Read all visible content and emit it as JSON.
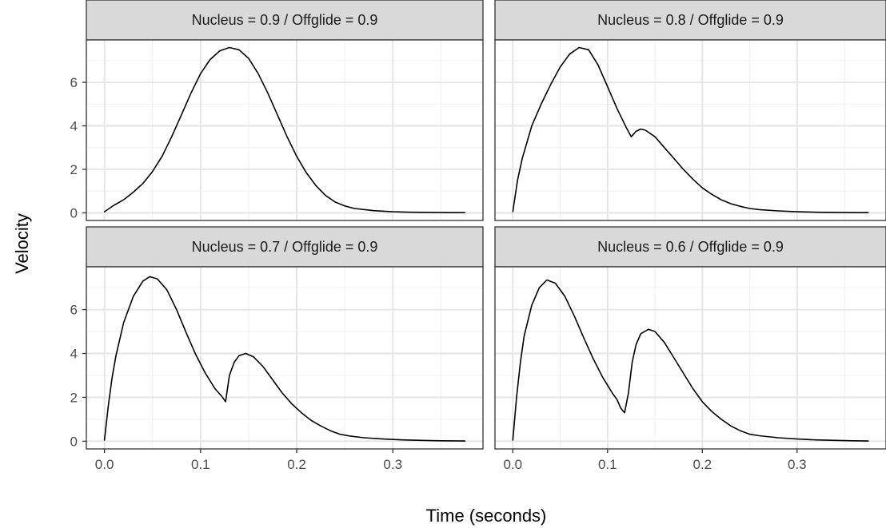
{
  "chart_data": {
    "type": "line",
    "xlabel": "Time (seconds)",
    "ylabel": "Velocity",
    "xlim": [
      -0.0188,
      0.3938
    ],
    "ylim": [
      -0.35,
      7.95
    ],
    "x_ticks": [
      0.0,
      0.1,
      0.2,
      0.3
    ],
    "x_tick_labels": [
      "0.0",
      "0.1",
      "0.2",
      "0.3"
    ],
    "y_ticks": [
      0,
      2,
      4,
      6
    ],
    "y_tick_labels": [
      "0",
      "2",
      "4",
      "6"
    ],
    "grid": true,
    "legend": "none",
    "line_color": "#000000",
    "strip_fill": "#d9d9d9",
    "panels": [
      {
        "strip": "Nucleus = 0.9 / Offglide = 0.9",
        "series": [
          {
            "x": [
              0.0,
              0.01,
              0.02,
              0.03,
              0.04,
              0.05,
              0.06,
              0.07,
              0.08,
              0.09,
              0.1,
              0.11,
              0.12,
              0.13,
              0.14,
              0.15,
              0.16,
              0.17,
              0.18,
              0.19,
              0.2,
              0.21,
              0.22,
              0.23,
              0.24,
              0.25,
              0.26,
              0.28,
              0.3,
              0.32,
              0.34,
              0.36,
              0.375
            ],
            "y": [
              0.05,
              0.35,
              0.6,
              0.95,
              1.35,
              1.9,
              2.6,
              3.5,
              4.5,
              5.5,
              6.4,
              7.05,
              7.45,
              7.6,
              7.5,
              7.1,
              6.4,
              5.5,
              4.5,
              3.5,
              2.6,
              1.85,
              1.25,
              0.8,
              0.5,
              0.32,
              0.2,
              0.1,
              0.05,
              0.03,
              0.02,
              0.01,
              0.01
            ]
          }
        ]
      },
      {
        "strip": "Nucleus = 0.8 / Offglide = 0.9",
        "series": [
          {
            "x": [
              0.0,
              0.005,
              0.01,
              0.02,
              0.03,
              0.04,
              0.05,
              0.06,
              0.07,
              0.08,
              0.09,
              0.1,
              0.11,
              0.12,
              0.125,
              0.13,
              0.135,
              0.14,
              0.15,
              0.16,
              0.17,
              0.18,
              0.19,
              0.2,
              0.21,
              0.22,
              0.23,
              0.24,
              0.25,
              0.26,
              0.28,
              0.3,
              0.32,
              0.34,
              0.36,
              0.375
            ],
            "y": [
              0.05,
              1.5,
              2.5,
              4.0,
              5.0,
              5.9,
              6.7,
              7.3,
              7.6,
              7.5,
              6.8,
              5.8,
              4.8,
              3.9,
              3.5,
              3.75,
              3.85,
              3.8,
              3.5,
              3.0,
              2.5,
              2.0,
              1.55,
              1.15,
              0.85,
              0.6,
              0.42,
              0.3,
              0.2,
              0.15,
              0.09,
              0.05,
              0.03,
              0.02,
              0.01,
              0.01
            ]
          }
        ]
      },
      {
        "strip": "Nucleus = 0.7 / Offglide = 0.9",
        "series": [
          {
            "x": [
              0.0,
              0.004,
              0.008,
              0.012,
              0.02,
              0.03,
              0.04,
              0.047,
              0.055,
              0.065,
              0.075,
              0.085,
              0.095,
              0.105,
              0.115,
              0.122,
              0.126,
              0.13,
              0.135,
              0.14,
              0.147,
              0.155,
              0.165,
              0.175,
              0.185,
              0.195,
              0.205,
              0.215,
              0.225,
              0.235,
              0.245,
              0.255,
              0.27,
              0.29,
              0.31,
              0.33,
              0.35,
              0.375
            ],
            "y": [
              0.05,
              1.6,
              2.9,
              3.9,
              5.4,
              6.6,
              7.3,
              7.5,
              7.4,
              6.9,
              6.0,
              4.95,
              3.95,
              3.1,
              2.4,
              2.05,
              1.8,
              3.0,
              3.6,
              3.9,
              4.0,
              3.85,
              3.4,
              2.8,
              2.2,
              1.7,
              1.3,
              0.95,
              0.7,
              0.48,
              0.32,
              0.24,
              0.16,
              0.1,
              0.06,
              0.04,
              0.02,
              0.01
            ]
          }
        ]
      },
      {
        "strip": "Nucleus = 0.6 / Offglide = 0.9",
        "series": [
          {
            "x": [
              0.0,
              0.004,
              0.008,
              0.012,
              0.02,
              0.028,
              0.036,
              0.045,
              0.055,
              0.065,
              0.075,
              0.085,
              0.095,
              0.105,
              0.11,
              0.114,
              0.118,
              0.122,
              0.126,
              0.13,
              0.135,
              0.143,
              0.15,
              0.16,
              0.17,
              0.18,
              0.19,
              0.2,
              0.21,
              0.22,
              0.23,
              0.24,
              0.25,
              0.26,
              0.28,
              0.3,
              0.32,
              0.34,
              0.36,
              0.375
            ],
            "y": [
              0.05,
              2.0,
              3.6,
              4.8,
              6.2,
              7.0,
              7.35,
              7.2,
              6.6,
              5.7,
              4.7,
              3.75,
              2.9,
              2.2,
              1.9,
              1.5,
              1.3,
              2.2,
              3.6,
              4.4,
              4.9,
              5.1,
              5.0,
              4.5,
              3.8,
              3.1,
              2.4,
              1.8,
              1.35,
              1.0,
              0.7,
              0.48,
              0.32,
              0.25,
              0.16,
              0.1,
              0.06,
              0.04,
              0.02,
              0.01
            ]
          }
        ]
      }
    ]
  }
}
